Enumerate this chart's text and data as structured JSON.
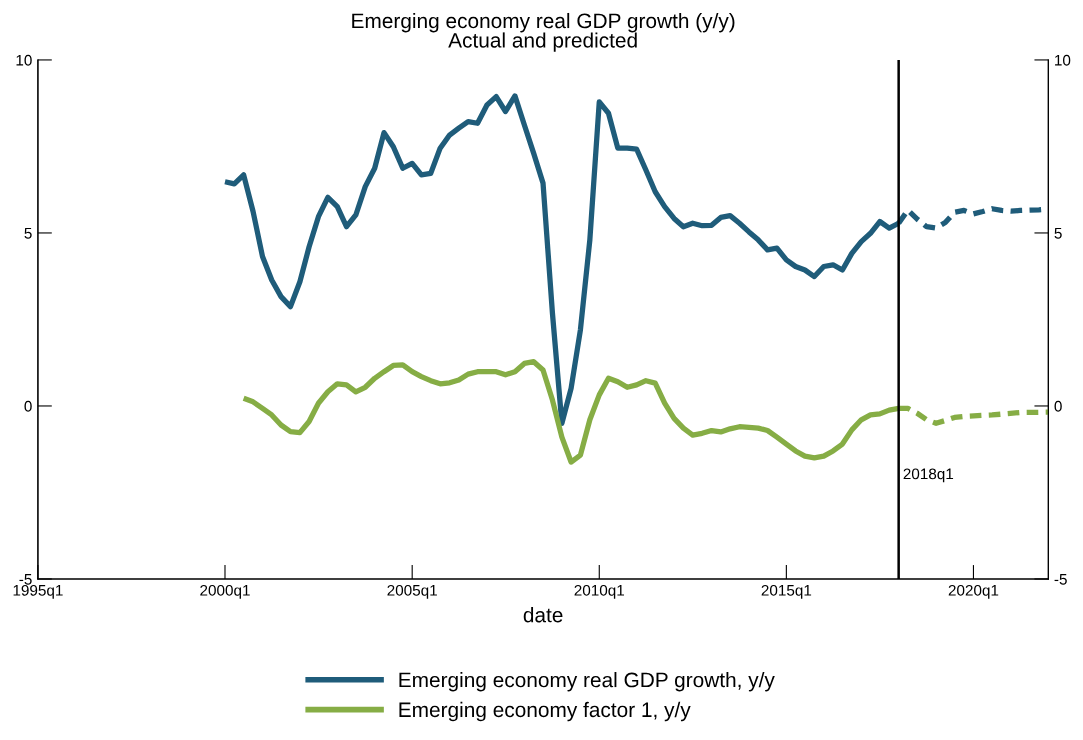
{
  "chart_data": {
    "type": "line",
    "title": "Emerging economy real GDP growth (y/y)",
    "subtitle": "Actual and predicted",
    "xlabel": "date",
    "xlim": [
      "1995-01",
      "2022-01"
    ],
    "xticks": [
      {
        "value": "1995-01",
        "label": "1995q1"
      },
      {
        "value": "2000-01",
        "label": "2000q1"
      },
      {
        "value": "2005-01",
        "label": "2005q1"
      },
      {
        "value": "2010-01",
        "label": "2010q1"
      },
      {
        "value": "2015-01",
        "label": "2015q1"
      },
      {
        "value": "2020-01",
        "label": "2020q1"
      }
    ],
    "ylim": [
      -5,
      10
    ],
    "yticks": [
      -5,
      0,
      5,
      10
    ],
    "y2lim": [
      -5,
      10
    ],
    "y2ticks": [
      -5,
      0,
      5,
      10
    ],
    "grid": false,
    "legend": "bottom",
    "ref_lines": [
      {
        "axis": "x",
        "value": "2018-01",
        "label": "2018q1",
        "color": "#000000"
      }
    ],
    "series": [
      {
        "name": "Emerging economy real GDP growth, y/y",
        "color": "#1f5c7a",
        "line_style": "solid",
        "x": [
          "2000-01",
          "2000-04",
          "2000-07",
          "2000-10",
          "2001-01",
          "2001-04",
          "2001-07",
          "2001-10",
          "2002-01",
          "2002-04",
          "2002-07",
          "2002-10",
          "2003-01",
          "2003-04",
          "2003-07",
          "2003-10",
          "2004-01",
          "2004-04",
          "2004-07",
          "2004-10",
          "2005-01",
          "2005-04",
          "2005-07",
          "2005-10",
          "2006-01",
          "2006-04",
          "2006-07",
          "2006-10",
          "2007-01",
          "2007-04",
          "2007-07",
          "2007-10",
          "2008-01",
          "2008-04",
          "2008-07",
          "2008-10",
          "2009-01",
          "2009-04",
          "2009-07",
          "2009-10",
          "2010-01",
          "2010-04",
          "2010-07",
          "2010-10",
          "2011-01",
          "2011-04",
          "2011-07",
          "2011-10",
          "2012-01",
          "2012-04",
          "2012-07",
          "2012-10",
          "2013-01",
          "2013-04",
          "2013-07",
          "2013-10",
          "2014-01",
          "2014-04",
          "2014-07",
          "2014-10",
          "2015-01",
          "2015-04",
          "2015-07",
          "2015-10",
          "2016-01",
          "2016-04",
          "2016-07",
          "2016-10",
          "2017-01",
          "2017-04",
          "2017-07",
          "2017-10",
          "2018-01"
        ],
        "values": [
          6.48,
          6.42,
          6.68,
          5.62,
          4.32,
          3.64,
          3.16,
          2.87,
          3.59,
          4.6,
          5.47,
          6.03,
          5.76,
          5.18,
          5.52,
          6.34,
          6.87,
          7.9,
          7.49,
          6.87,
          7.01,
          6.68,
          6.72,
          7.45,
          7.83,
          8.03,
          8.22,
          8.17,
          8.7,
          8.94,
          8.51,
          8.96,
          8.12,
          7.3,
          6.44,
          2.68,
          -0.5,
          0.51,
          2.2,
          4.8,
          8.79,
          8.46,
          7.45,
          7.45,
          7.42,
          6.82,
          6.19,
          5.76,
          5.42,
          5.18,
          5.28,
          5.21,
          5.22,
          5.45,
          5.5,
          5.28,
          5.03,
          4.8,
          4.51,
          4.56,
          4.22,
          4.03,
          3.93,
          3.74,
          4.03,
          4.08,
          3.93,
          4.41,
          4.75,
          4.99,
          5.33,
          5.14,
          5.28
        ]
      },
      {
        "color": "#1f5c7a",
        "line_style": "dashed",
        "x": [
          "2018-01",
          "2018-04",
          "2018-07",
          "2018-10",
          "2019-01",
          "2019-04",
          "2019-07",
          "2019-10",
          "2020-01",
          "2020-04",
          "2020-07",
          "2020-10",
          "2021-01",
          "2021-04",
          "2021-07",
          "2021-10",
          "2022-01"
        ],
        "values": [
          5.28,
          5.66,
          5.4,
          5.18,
          5.14,
          5.3,
          5.6,
          5.65,
          5.55,
          5.62,
          5.7,
          5.65,
          5.63,
          5.65,
          5.66,
          5.67,
          5.69
        ]
      },
      {
        "name": "Emerging economy factor 1, y/y",
        "color": "#86ad45",
        "line_style": "solid",
        "x": [
          "2000-07",
          "2000-10",
          "2001-01",
          "2001-04",
          "2001-07",
          "2001-10",
          "2002-01",
          "2002-04",
          "2002-07",
          "2002-10",
          "2003-01",
          "2003-04",
          "2003-07",
          "2003-10",
          "2004-01",
          "2004-04",
          "2004-07",
          "2004-10",
          "2005-01",
          "2005-04",
          "2005-07",
          "2005-10",
          "2006-01",
          "2006-04",
          "2006-07",
          "2006-10",
          "2007-01",
          "2007-04",
          "2007-07",
          "2007-10",
          "2008-01",
          "2008-04",
          "2008-07",
          "2008-10",
          "2009-01",
          "2009-04",
          "2009-07",
          "2009-10",
          "2010-01",
          "2010-04",
          "2010-07",
          "2010-10",
          "2011-01",
          "2011-04",
          "2011-07",
          "2011-10",
          "2012-01",
          "2012-04",
          "2012-07",
          "2012-10",
          "2013-01",
          "2013-04",
          "2013-07",
          "2013-10",
          "2014-01",
          "2014-04",
          "2014-07",
          "2014-10",
          "2015-01",
          "2015-04",
          "2015-07",
          "2015-10",
          "2016-01",
          "2016-04",
          "2016-07",
          "2016-10",
          "2017-01",
          "2017-04",
          "2017-07",
          "2017-10",
          "2018-01"
        ],
        "values": [
          0.22,
          0.12,
          -0.07,
          -0.26,
          -0.55,
          -0.74,
          -0.77,
          -0.45,
          0.08,
          0.41,
          0.64,
          0.61,
          0.41,
          0.54,
          0.8,
          0.99,
          1.17,
          1.19,
          0.99,
          0.85,
          0.73,
          0.64,
          0.67,
          0.75,
          0.92,
          0.99,
          0.99,
          0.99,
          0.9,
          0.99,
          1.23,
          1.28,
          1.04,
          0.17,
          -0.9,
          -1.62,
          -1.42,
          -0.4,
          0.32,
          0.8,
          0.7,
          0.54,
          0.61,
          0.73,
          0.66,
          0.08,
          -0.36,
          -0.64,
          -0.84,
          -0.79,
          -0.71,
          -0.75,
          -0.66,
          -0.6,
          -0.62,
          -0.64,
          -0.71,
          -0.9,
          -1.1,
          -1.3,
          -1.45,
          -1.5,
          -1.45,
          -1.3,
          -1.1,
          -0.69,
          -0.4,
          -0.26,
          -0.23,
          -0.12,
          -0.07
        ]
      },
      {
        "color": "#86ad45",
        "line_style": "dashed",
        "x": [
          "2018-01",
          "2018-04",
          "2018-07",
          "2018-10",
          "2019-01",
          "2019-04",
          "2019-07",
          "2019-10",
          "2020-07",
          "2021-04",
          "2022-01"
        ],
        "values": [
          -0.07,
          -0.07,
          -0.21,
          -0.4,
          -0.5,
          -0.42,
          -0.33,
          -0.3,
          -0.26,
          -0.19,
          -0.18
        ]
      }
    ]
  }
}
